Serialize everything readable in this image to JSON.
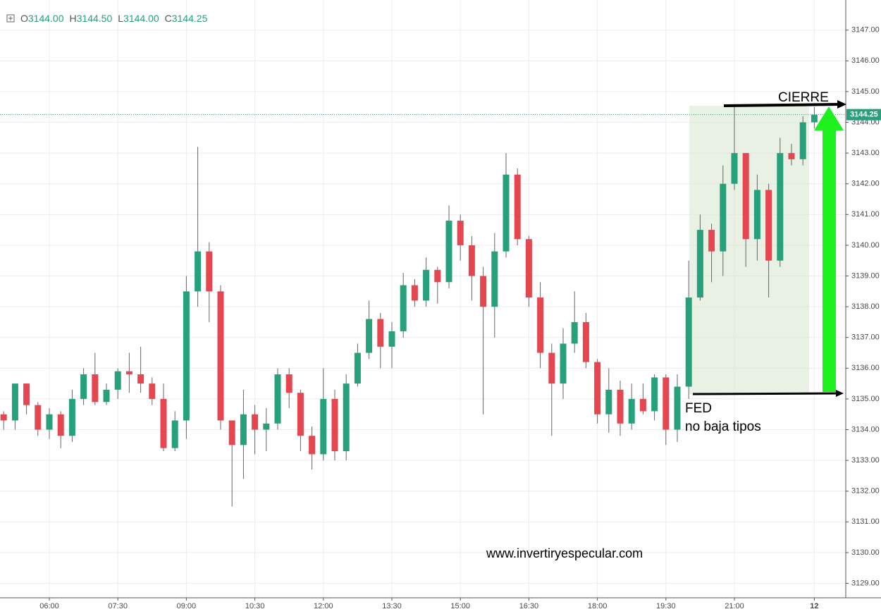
{
  "chart_data": {
    "type": "candlestick",
    "ohlc_header": [
      {
        "label": "O",
        "value": "3144.00"
      },
      {
        "label": "H",
        "value": "3144.50"
      },
      {
        "label": "L",
        "value": "3144.00"
      },
      {
        "label": "C",
        "value": "3144.25"
      }
    ],
    "categories": [
      null,
      null,
      null,
      null,
      "06:00",
      null,
      null,
      null,
      null,
      null,
      "07:30",
      null,
      null,
      null,
      null,
      null,
      "09:00",
      null,
      null,
      null,
      null,
      null,
      "10:30",
      null,
      null,
      null,
      null,
      null,
      "12:00",
      null,
      null,
      null,
      null,
      null,
      "13:30",
      null,
      null,
      null,
      null,
      null,
      "15:00",
      null,
      null,
      null,
      null,
      null,
      "16:30",
      null,
      null,
      null,
      null,
      null,
      "18:00",
      null,
      null,
      null,
      null,
      null,
      "19:30",
      null,
      null,
      null,
      null,
      null,
      "21:00",
      null,
      null,
      null,
      null,
      null,
      null,
      "12"
    ],
    "open": [
      3134.5,
      3134.3,
      3135.5,
      3134.8,
      3134.0,
      3134.5,
      3133.8,
      3135.0,
      3135.8,
      3134.9,
      3135.3,
      3135.9,
      3135.8,
      3135.5,
      3135.0,
      3133.4,
      3134.3,
      3138.5,
      3139.8,
      3138.5,
      3134.3,
      3133.5,
      3134.5,
      3134.0,
      3134.2,
      3135.8,
      3135.2,
      3133.8,
      3133.2,
      3135.0,
      3133.3,
      3135.5,
      3136.5,
      3137.6,
      3136.7,
      3137.2,
      3138.7,
      3138.2,
      3139.2,
      3138.8,
      3140.8,
      3140.0,
      3139.0,
      3138.0,
      3139.8,
      3142.3,
      3140.2,
      3138.3,
      3136.5,
      3135.5,
      3136.8,
      3137.5,
      3136.2,
      3134.5,
      3135.3,
      3134.2,
      3135.0,
      3134.6,
      3135.7,
      3134.0,
      3135.4,
      3138.3,
      3140.5,
      3139.8,
      3142.0,
      3143.0,
      3140.2,
      3141.8,
      3139.5,
      3143.0,
      3142.8,
      3144.0
    ],
    "high": [
      3134.6,
      3135.5,
      3135.5,
      3134.9,
      3134.7,
      3134.6,
      3135.3,
      3136.0,
      3136.5,
      3135.5,
      3136.0,
      3136.5,
      3136.7,
      3135.7,
      3135.5,
      3134.6,
      3139.0,
      3143.2,
      3140.1,
      3138.7,
      3134.3,
      3135.3,
      3134.8,
      3134.7,
      3136.0,
      3136.0,
      3135.3,
      3134.1,
      3136.0,
      3135.3,
      3135.8,
      3136.8,
      3138.2,
      3137.8,
      3137.5,
      3139.1,
      3138.9,
      3139.6,
      3139.3,
      3141.3,
      3141.0,
      3140.3,
      3139.3,
      3140.4,
      3143.0,
      3142.5,
      3140.3,
      3138.8,
      3136.8,
      3137.3,
      3138.5,
      3137.8,
      3136.3,
      3136.0,
      3135.6,
      3135.5,
      3135.5,
      3135.8,
      3135.8,
      3135.8,
      3139.5,
      3141.0,
      3140.7,
      3142.6,
      3144.5,
      3143.0,
      3142.3,
      3142.0,
      3143.5,
      3143.3,
      3144.2,
      3144.5
    ],
    "low": [
      3134.0,
      3134.0,
      3134.5,
      3133.8,
      3133.7,
      3133.4,
      3133.6,
      3134.8,
      3134.8,
      3134.8,
      3135.0,
      3135.2,
      3135.2,
      3134.8,
      3133.3,
      3133.3,
      3133.7,
      3138.0,
      3137.5,
      3134.0,
      3131.5,
      3132.4,
      3133.2,
      3133.3,
      3134.0,
      3134.7,
      3133.3,
      3132.7,
      3133.0,
      3133.0,
      3133.0,
      3135.4,
      3136.3,
      3136.0,
      3136.0,
      3137.0,
      3138.0,
      3138.0,
      3138.1,
      3138.6,
      3139.5,
      3138.2,
      3134.5,
      3137.0,
      3139.6,
      3140.0,
      3138.0,
      3136.0,
      3133.8,
      3135.0,
      3136.5,
      3136.0,
      3134.2,
      3133.9,
      3133.8,
      3134.0,
      3134.5,
      3134.3,
      3133.5,
      3133.6,
      3135.0,
      3138.2,
      3138.8,
      3139.0,
      3141.8,
      3139.3,
      3139.5,
      3138.3,
      3139.3,
      3142.6,
      3142.6,
      3143.8
    ],
    "close": [
      3134.3,
      3135.5,
      3134.8,
      3134.0,
      3134.5,
      3133.8,
      3135.0,
      3135.8,
      3134.9,
      3135.3,
      3135.9,
      3135.8,
      3135.5,
      3135.0,
      3133.4,
      3134.3,
      3138.5,
      3139.8,
      3138.5,
      3134.3,
      3133.5,
      3134.5,
      3134.0,
      3134.2,
      3135.8,
      3135.2,
      3133.8,
      3133.2,
      3135.0,
      3133.3,
      3135.5,
      3136.5,
      3137.6,
      3136.7,
      3137.2,
      3138.7,
      3138.2,
      3139.2,
      3138.8,
      3140.8,
      3140.0,
      3139.0,
      3138.0,
      3139.8,
      3142.3,
      3140.2,
      3138.3,
      3136.5,
      3135.5,
      3136.8,
      3137.5,
      3136.2,
      3134.5,
      3135.3,
      3134.2,
      3135.0,
      3134.6,
      3135.7,
      3134.0,
      3135.4,
      3138.3,
      3140.5,
      3139.8,
      3142.0,
      3143.0,
      3140.2,
      3141.8,
      3139.5,
      3143.0,
      3142.8,
      3144.0,
      3144.25
    ],
    "up_color": "#26a17b",
    "down_color": "#e5464f",
    "ylim": [
      3128.53,
      3147.98
    ],
    "yticks": [
      {
        "value": 3129,
        "label": "3129.00"
      },
      {
        "value": 3130,
        "label": "3130.00"
      },
      {
        "value": 3131,
        "label": "3131.00"
      },
      {
        "value": 3132,
        "label": "3132.00"
      },
      {
        "value": 3133,
        "label": "3133.00"
      },
      {
        "value": 3134,
        "label": "3134.00"
      },
      {
        "value": 3135,
        "label": "3135.00"
      },
      {
        "value": 3136,
        "label": "3136.00"
      },
      {
        "value": 3137,
        "label": "3137.00"
      },
      {
        "value": 3138,
        "label": "3138.00"
      },
      {
        "value": 3139,
        "label": "3139.00"
      },
      {
        "value": 3140,
        "label": "3140.00"
      },
      {
        "value": 3141,
        "label": "3141.00"
      },
      {
        "value": 3142,
        "label": "3142.00"
      },
      {
        "value": 3143,
        "label": "3143.00"
      },
      {
        "value": 3144,
        "label": "3144.00"
      },
      {
        "value": 3145,
        "label": "3145.00"
      },
      {
        "value": 3146,
        "label": "3146.00"
      },
      {
        "value": 3147,
        "label": "3147.00"
      }
    ],
    "last_price": {
      "value": 3144.25,
      "label": "3144.25"
    },
    "grid": true,
    "annotations": {
      "close_label": "CIERRE",
      "event": "FED",
      "event_note": "no baja tipos",
      "watermark": "www.invertiryespecular.com"
    }
  }
}
